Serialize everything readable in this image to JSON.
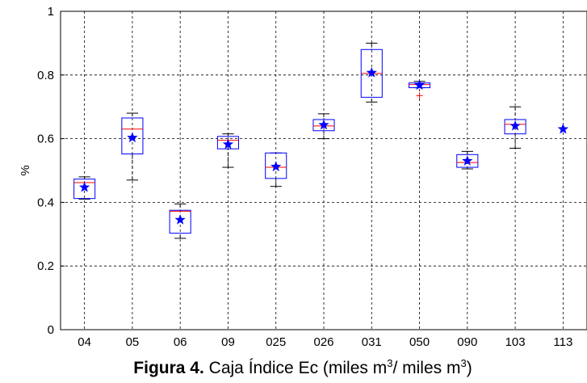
{
  "chart_data": {
    "type": "box",
    "ylabel": "%",
    "categories": [
      "04",
      "05",
      "06",
      "09",
      "025",
      "026",
      "031",
      "050",
      "090",
      "103",
      "113"
    ],
    "low": [
      0.41,
      0.47,
      0.287,
      0.51,
      0.45,
      0.6,
      0.715,
      0.76,
      0.505,
      0.57,
      null
    ],
    "q1": [
      0.412,
      0.552,
      0.303,
      0.568,
      0.475,
      0.625,
      0.73,
      0.76,
      0.51,
      0.615,
      null
    ],
    "median": [
      0.462,
      0.63,
      0.372,
      0.595,
      0.51,
      0.64,
      0.805,
      0.77,
      0.525,
      0.645,
      null
    ],
    "q3": [
      0.473,
      0.665,
      0.375,
      0.607,
      0.555,
      0.66,
      0.88,
      0.775,
      0.55,
      0.66,
      null
    ],
    "high": [
      0.48,
      0.68,
      0.395,
      0.615,
      0.555,
      0.678,
      0.9,
      0.78,
      0.56,
      0.7,
      null
    ],
    "mean": [
      0.447,
      0.603,
      0.345,
      0.582,
      0.512,
      0.643,
      0.807,
      0.768,
      0.53,
      0.64,
      0.63
    ],
    "outliers": [
      [],
      [],
      [],
      [],
      [],
      [],
      [],
      [
        0.735
      ],
      [],
      [],
      []
    ],
    "box_color": "#0000ff",
    "median_color": "#ff0000",
    "mean_color": "#0000ff",
    "outlier_color": "#ff0000",
    "ylim": [
      0,
      1
    ],
    "yticks": [
      0,
      0.2,
      0.4,
      0.6,
      0.8,
      1
    ],
    "grid": true,
    "caption": {
      "label": "Figura 4.",
      "text_parts": [
        "Caja Índice Ec (miles m",
        "3",
        "/ miles m",
        "3",
        ")"
      ]
    }
  }
}
